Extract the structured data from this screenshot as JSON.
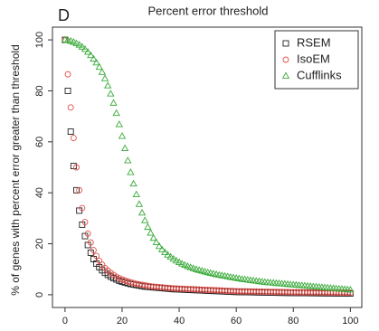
{
  "chart_data": {
    "type": "scatter",
    "title": "Percent error threshold",
    "annotation": "D",
    "y_label": "% of genes with percent error greater than threshold",
    "xlim": [
      -4.4,
      104
    ],
    "ylim": [
      -5,
      105
    ],
    "xticks": [
      0,
      20,
      40,
      60,
      80,
      100
    ],
    "yticks": [
      0,
      20,
      40,
      60,
      80,
      100
    ],
    "legend": "top-right",
    "x": [
      0,
      1,
      2,
      3,
      4,
      5,
      6,
      7,
      8,
      9,
      10,
      11,
      12,
      13,
      14,
      15,
      16,
      17,
      18,
      19,
      20,
      21,
      22,
      23,
      24,
      25,
      26,
      27,
      28,
      29,
      30,
      31,
      32,
      33,
      34,
      35,
      36,
      37,
      38,
      39,
      40,
      41,
      42,
      43,
      44,
      45,
      46,
      47,
      48,
      49,
      50,
      51,
      52,
      53,
      54,
      55,
      56,
      57,
      58,
      59,
      60,
      61,
      62,
      63,
      64,
      65,
      66,
      67,
      68,
      69,
      70,
      71,
      72,
      73,
      74,
      75,
      76,
      77,
      78,
      79,
      80,
      81,
      82,
      83,
      84,
      85,
      86,
      87,
      88,
      89,
      90,
      91,
      92,
      93,
      94,
      95,
      96,
      97,
      98,
      99,
      100
    ],
    "series": [
      {
        "name": "RSEM",
        "color": "#222222",
        "marker": "square",
        "values": [
          100,
          80,
          64,
          50.5,
          41,
          33,
          27.5,
          23,
          19.5,
          16.5,
          14,
          12.2,
          10.8,
          9.6,
          8.6,
          7.8,
          7.1,
          6.5,
          6,
          5.5,
          5.1,
          4.8,
          4.5,
          4.2,
          4,
          3.8,
          3.6,
          3.4,
          3.2,
          3.1,
          3,
          2.9,
          2.8,
          2.7,
          2.6,
          2.5,
          2.4,
          2.3,
          2.2,
          2.15,
          2.1,
          2.05,
          2,
          1.95,
          1.9,
          1.85,
          1.8,
          1.75,
          1.7,
          1.65,
          1.6,
          1.55,
          1.5,
          1.45,
          1.4,
          1.35,
          1.3,
          1.25,
          1.2,
          1.15,
          1.1,
          1.08,
          1.06,
          1.04,
          1.02,
          1,
          0.98,
          0.96,
          0.94,
          0.92,
          0.9,
          0.88,
          0.86,
          0.84,
          0.82,
          0.8,
          0.78,
          0.76,
          0.74,
          0.72,
          0.7,
          0.69,
          0.68,
          0.67,
          0.66,
          0.65,
          0.64,
          0.63,
          0.62,
          0.61,
          0.6,
          0.59,
          0.58,
          0.57,
          0.56,
          0.55,
          0.54,
          0.53,
          0.52,
          0.51,
          0.5
        ]
      },
      {
        "name": "IsoEM",
        "color": "#e0504a",
        "marker": "circle",
        "values": [
          100,
          86.5,
          73.5,
          61.5,
          50,
          41,
          34,
          28.5,
          24,
          20.5,
          17.5,
          15.2,
          13.3,
          11.8,
          10.5,
          9.5,
          8.6,
          7.8,
          7.1,
          6.5,
          6,
          5.6,
          5.2,
          4.9,
          4.6,
          4.3,
          4.1,
          3.9,
          3.7,
          3.5,
          3.3,
          3.2,
          3.1,
          3,
          2.9,
          2.8,
          2.7,
          2.6,
          2.5,
          2.45,
          2.4,
          2.35,
          2.3,
          2.25,
          2.2,
          2.15,
          2.1,
          2.05,
          2,
          1.95,
          1.9,
          1.85,
          1.8,
          1.75,
          1.7,
          1.65,
          1.6,
          1.55,
          1.5,
          1.45,
          1.4,
          1.38,
          1.36,
          1.34,
          1.32,
          1.3,
          1.28,
          1.26,
          1.24,
          1.22,
          1.2,
          1.18,
          1.16,
          1.14,
          1.12,
          1.1,
          1.08,
          1.06,
          1.04,
          1.02,
          1,
          0.99,
          0.98,
          0.97,
          0.96,
          0.95,
          0.94,
          0.93,
          0.92,
          0.91,
          0.9,
          0.89,
          0.88,
          0.87,
          0.86,
          0.85,
          0.84,
          0.83,
          0.82,
          0.81,
          0.8
        ]
      },
      {
        "name": "Cufflinks",
        "color": "#3aaa3a",
        "marker": "triangle",
        "values": [
          100,
          99.8,
          99.5,
          99.1,
          98.6,
          98,
          97.2,
          96.3,
          95.2,
          93.9,
          92.5,
          91,
          89.3,
          87.3,
          84.8,
          82,
          78.8,
          75.2,
          71.2,
          66.8,
          62.2,
          57.4,
          52.6,
          48,
          43.5,
          39.3,
          35.5,
          32.1,
          29.1,
          26.5,
          24.2,
          22.2,
          20.5,
          19,
          17.7,
          16.6,
          15.6,
          14.8,
          14,
          13.3,
          12.7,
          12.1,
          11.6,
          11.1,
          10.7,
          10.3,
          9.9,
          9.6,
          9.3,
          9,
          8.7,
          8.45,
          8.2,
          7.95,
          7.7,
          7.5,
          7.3,
          7.1,
          6.9,
          6.7,
          6.5,
          6.3,
          6.1,
          5.95,
          5.8,
          5.65,
          5.5,
          5.35,
          5.2,
          5.05,
          4.9,
          4.8,
          4.7,
          4.6,
          4.5,
          4.4,
          4.3,
          4.2,
          4.1,
          4,
          3.9,
          3.8,
          3.7,
          3.6,
          3.5,
          3.4,
          3.3,
          3.2,
          3.1,
          3,
          2.9,
          2.8,
          2.7,
          2.6,
          2.5,
          2.4,
          2.3,
          2.2,
          2.1,
          2,
          1.9
        ]
      }
    ]
  }
}
